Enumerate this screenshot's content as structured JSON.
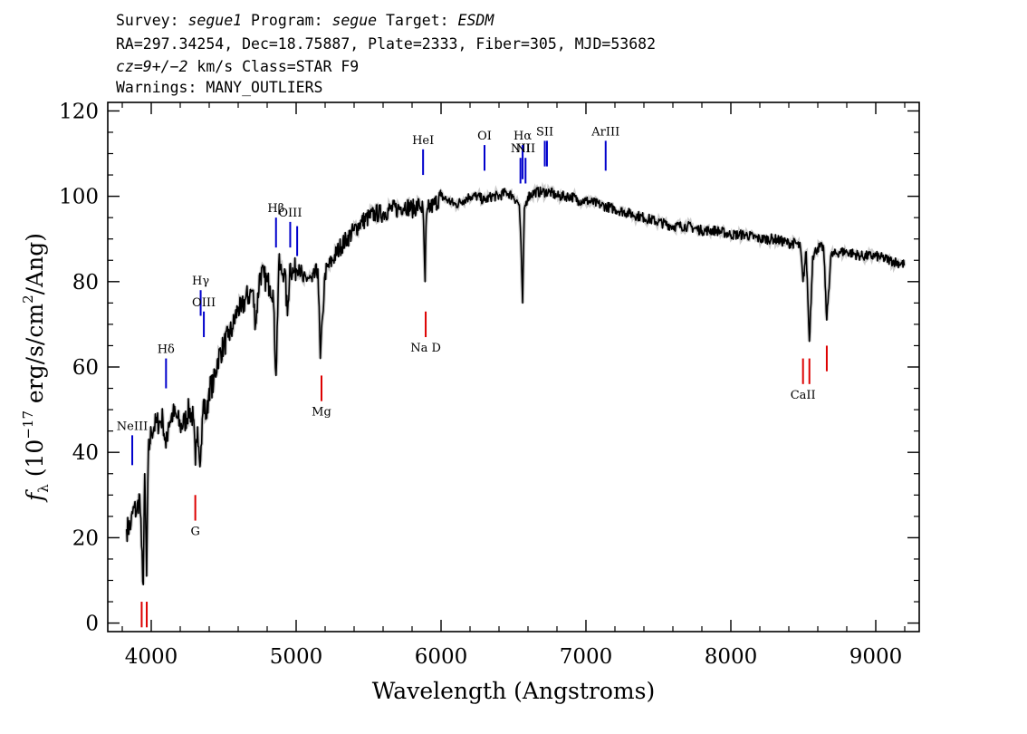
{
  "header": {
    "line1_parts": [
      "Survey: ",
      "segue1",
      " Program: ",
      "segue",
      " Target: ",
      "ESDM"
    ],
    "line2": "RA=297.34254, Dec=18.75887, Plate=2333, Fiber=305, MJD=53682",
    "line3_parts": [
      "cz=9+/−2",
      " km/s Class=STAR F9"
    ],
    "line4": "Warnings: MANY_OUTLIERS"
  },
  "colors": {
    "emission": "#0000cc",
    "absorption": "#dd0000",
    "spectrum": "#000000",
    "error_band": "#aaaaaa"
  },
  "chart_data": {
    "type": "line",
    "title": "",
    "xlabel": "Wavelength (Angstroms)",
    "ylabel_parts": [
      "f",
      "λ",
      " (10",
      "−17",
      " erg/s/cm",
      "2",
      "/Ang)"
    ],
    "xlim": [
      3700,
      9300
    ],
    "ylim": [
      -2,
      122
    ],
    "x_ticks": [
      4000,
      5000,
      6000,
      7000,
      8000,
      9000
    ],
    "x_tick_labels": [
      "4000",
      "5000",
      "6000",
      "7000",
      "8000",
      "9000"
    ],
    "y_ticks": [
      0,
      20,
      40,
      60,
      80,
      100,
      120
    ],
    "y_tick_labels": [
      "0",
      "20",
      "40",
      "60",
      "80",
      "100",
      "120"
    ],
    "grid": false,
    "series": [
      {
        "x": [
          3830,
          3860,
          3880,
          3900,
          3920,
          3933,
          3945,
          3955,
          3968,
          3980,
          3990,
          4000,
          4020,
          4040,
          4060,
          4080,
          4101,
          4120,
          4150,
          4180,
          4200,
          4230,
          4260,
          4290,
          4305,
          4320,
          4340,
          4360,
          4383,
          4400,
          4430,
          4460,
          4500,
          4530,
          4560,
          4600,
          4620,
          4650,
          4680,
          4700,
          4720,
          4750,
          4780,
          4800,
          4820,
          4840,
          4861,
          4880,
          4900,
          4920,
          4940,
          4957,
          4980,
          5000,
          5020,
          5050,
          5080,
          5110,
          5150,
          5167,
          5183,
          5200,
          5250,
          5300,
          5350,
          5400,
          5450,
          5500,
          5550,
          5600,
          5650,
          5700,
          5750,
          5800,
          5850,
          5875,
          5890,
          5896,
          5910,
          5950,
          6000,
          6050,
          6100,
          6150,
          6200,
          6250,
          6300,
          6350,
          6400,
          6450,
          6500,
          6540,
          6555,
          6563,
          6575,
          6600,
          6650,
          6700,
          6750,
          6800,
          6850,
          6900,
          6950,
          7000,
          7100,
          7200,
          7300,
          7400,
          7500,
          7600,
          7700,
          7800,
          7900,
          8000,
          8100,
          8200,
          8300,
          8400,
          8450,
          8480,
          8498,
          8520,
          8542,
          8565,
          8600,
          8640,
          8662,
          8690,
          8750,
          8800,
          8900,
          9000,
          9100,
          9200
        ],
        "y": [
          22,
          23,
          27,
          26,
          30,
          18,
          9,
          35,
          11,
          40,
          42,
          45,
          46,
          47,
          47,
          48,
          41,
          47,
          49,
          48,
          46,
          47,
          50,
          48,
          37,
          46,
          38,
          52,
          48,
          55,
          56,
          62,
          65,
          67,
          69,
          74,
          73,
          76,
          77,
          78,
          70,
          82,
          81,
          80,
          79,
          78,
          58,
          84,
          82,
          83,
          72,
          84,
          82,
          83,
          84,
          80,
          81,
          80,
          83,
          62,
          72,
          82,
          85,
          88,
          90,
          92,
          94,
          95,
          96,
          96,
          97,
          97,
          98,
          97,
          98,
          97,
          80,
          93,
          97,
          98,
          100,
          99,
          98,
          99,
          100,
          100,
          99,
          100,
          100,
          101,
          100,
          98,
          85,
          75,
          97,
          100,
          101,
          101,
          101,
          100,
          100,
          100,
          99,
          99,
          98,
          97,
          96,
          95,
          94,
          93,
          93,
          92,
          92,
          91,
          91,
          90,
          90,
          89,
          89,
          88,
          80,
          87,
          66,
          86,
          88,
          88,
          71,
          86,
          87,
          87,
          86,
          86,
          85,
          84
        ],
        "noise_seed": 7
      }
    ],
    "emission_lines": [
      {
        "label": "NeIII",
        "wavelength": 3869,
        "y_lo": 37,
        "y_hi": 44
      },
      {
        "label": "Hδ",
        "wavelength": 4102,
        "y_lo": 55,
        "y_hi": 62
      },
      {
        "label": "Hγ",
        "wavelength": 4341,
        "y_lo": 72,
        "y_hi": 78
      },
      {
        "label": "OIII",
        "wavelength": 4363,
        "y_lo": 67,
        "y_hi": 73
      },
      {
        "label": "Hβ",
        "wavelength": 4861,
        "y_lo": 88,
        "y_hi": 95
      },
      {
        "label": "OIII",
        "wavelength": 4959,
        "y_lo": 88,
        "y_hi": 94
      },
      {
        "label": "",
        "wavelength": 5007,
        "y_lo": 86,
        "y_hi": 93
      },
      {
        "label": "HeI",
        "wavelength": 5876,
        "y_lo": 105,
        "y_hi": 111
      },
      {
        "label": "OI",
        "wavelength": 6300,
        "y_lo": 106,
        "y_hi": 112
      },
      {
        "label": "NII",
        "wavelength": 6548,
        "y_lo": 103,
        "y_hi": 109
      },
      {
        "label": "Hα",
        "wavelength": 6563,
        "y_lo": 104,
        "y_hi": 112
      },
      {
        "label": "NII",
        "wavelength": 6583,
        "y_lo": 103,
        "y_hi": 109
      },
      {
        "label": "SII",
        "wavelength": 6716,
        "y_lo": 107,
        "y_hi": 113
      },
      {
        "label": "",
        "wavelength": 6731,
        "y_lo": 107,
        "y_hi": 113
      },
      {
        "label": "ArIII",
        "wavelength": 7136,
        "y_lo": 106,
        "y_hi": 113
      }
    ],
    "absorption_lines": [
      {
        "label": "",
        "wavelength": 3934,
        "y_lo": -1,
        "y_hi": 5
      },
      {
        "label": "",
        "wavelength": 3969,
        "y_lo": -1,
        "y_hi": 5
      },
      {
        "label": "G",
        "wavelength": 4304,
        "y_lo": 24,
        "y_hi": 30
      },
      {
        "label": "Mg",
        "wavelength": 5175,
        "y_lo": 52,
        "y_hi": 58
      },
      {
        "label": "Na D",
        "wavelength": 5894,
        "y_lo": 67,
        "y_hi": 73
      },
      {
        "label": "CaII",
        "wavelength": 8498,
        "y_lo": 56,
        "y_hi": 62
      },
      {
        "label": "",
        "wavelength": 8542,
        "y_lo": 56,
        "y_hi": 62
      },
      {
        "label": "",
        "wavelength": 8662,
        "y_lo": 59,
        "y_hi": 65
      }
    ]
  }
}
